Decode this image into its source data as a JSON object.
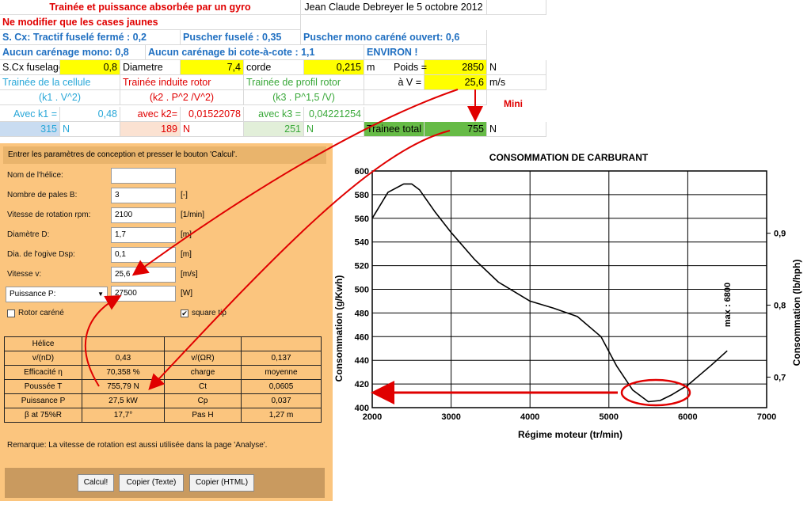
{
  "sheet": {
    "title": "Trainée et puissance absorbée par un gyro",
    "author_date": "Jean Claude Debreyer le 5 octobre 2012",
    "warning": "Ne modifier que les cases jaunes",
    "scx_label": "S. Cx:  Tractif fuselé fermé : 0,2",
    "puscher_fusele": "Puscher fuselé : 0,35",
    "puscher_mono": "Puscher mono caréné ouvert: 0,6",
    "aucun_mono": "Aucun carénage mono:  0,8",
    "aucun_bi": "Aucun carénage bi cote-à-cote : 1,1",
    "environ": "ENVIRON !",
    "scx_fuselage_label": "S.Cx fuselage",
    "scx_fuselage_value": "0,8",
    "diametre_label": "Diametre",
    "diametre_value": "7,4",
    "corde_label": "corde",
    "corde_value": "0,215",
    "corde_unit": "m",
    "poids_label": "Poids =",
    "poids_value": "2850",
    "poids_unit": "N",
    "trainee_cellule": "Trainée de la cellule",
    "trainee_induite": "Trainée induite rotor",
    "trainee_profil": "Trainée de profil rotor",
    "v_label": "à  V =",
    "v_value": "25,6",
    "v_unit": "m/s",
    "formula1": "(k1 . V^2)",
    "formula2": "(k2 . P^2 /V^2)",
    "formula3": "(k3 . P^1,5 /V)",
    "mini": "Mini",
    "k1_label": "Avec k1 =",
    "k1_value": "0,48",
    "k2_label": "avec k2=",
    "k2_value": "0,01522078",
    "k3_label": "avec k3 =",
    "k3_value": "0,04221254",
    "r1_value": "315",
    "r2_value": "189",
    "r3_value": "251",
    "n_unit": "N",
    "trainee_total_label": "Trainee total",
    "trainee_total_value": "755"
  },
  "dialog": {
    "header": "Entrer les paramètres de conception et presser le bouton 'Calcul'.",
    "nom_label": "Nom de l'hélice:",
    "nom_value": "",
    "pales_label": "Nombre de pales  B:",
    "pales_value": "3",
    "pales_unit": "[-]",
    "rpm_label": "Vitesse de rotation  rpm:",
    "rpm_value": "2100",
    "rpm_unit": "[1/min]",
    "diam_label": "Diamètre  D:",
    "diam_value": "1,7",
    "diam_unit": "[m]",
    "ogive_label": "Dia. de l'ogive  Dsp:",
    "ogive_value": "0,1",
    "ogive_unit": "[m]",
    "vitesse_label": "Vitesse  v:",
    "vitesse_value": "25,6",
    "vitesse_unit": "[m/s]",
    "puissance_select": "Puissance  P:",
    "puissance_value": "27500",
    "puissance_unit": "[W]",
    "rotor_carene": "Rotor caréné",
    "square_tip": "square tip",
    "table_title": "Hélice",
    "rows": [
      {
        "a": "v/(nD)",
        "b": "0,43",
        "c": "v/(ΩR)",
        "d": "0,137"
      },
      {
        "a": "Efficacité η",
        "b": "70,358 %",
        "c": "charge",
        "d": "moyenne"
      },
      {
        "a": "Poussée  T",
        "b": "755,79 N",
        "c": "Ct",
        "d": "0,0605"
      },
      {
        "a": "Puissance  P",
        "b": "27,5 kW",
        "c": "Cp",
        "d": "0,037"
      },
      {
        "a": "β at 75%R",
        "b": "17,7°",
        "c": "Pas H",
        "d": "1,27 m"
      }
    ],
    "remark": "Remarque: La vitesse de rotation est aussi utilisée dans la page 'Analyse'.",
    "btn_calcul": "Calcul!",
    "btn_copier_texte": "Copier (Texte)",
    "btn_copier_html": "Copier (HTML)"
  },
  "chart_data": {
    "type": "line",
    "title": "CONSOMMATION DE CARBURANT",
    "xlabel": "Régime moteur (tr/min)",
    "ylabel": "Consommation (g/Kwh)",
    "y2label": "Consommation (lb/hph)",
    "annotation": "max : 6800",
    "xlim": [
      2000,
      7000
    ],
    "ylim": [
      400,
      600
    ],
    "x_ticks": [
      "2000",
      "3000",
      "4000",
      "5000",
      "6000",
      "7000"
    ],
    "y_ticks": [
      "400",
      "420",
      "440",
      "460",
      "480",
      "500",
      "520",
      "540",
      "560",
      "580",
      "600"
    ],
    "y2_ticks": [
      "0,7",
      "0,8",
      "0,9"
    ],
    "grid": true,
    "series": [
      {
        "x": [
          2000,
          2200,
          2400,
          2500,
          2600,
          2800,
          3000,
          3300,
          3600,
          4000,
          4300,
          4600,
          4900,
          5100,
          5300,
          5500,
          5650,
          5800,
          6000,
          6300,
          6500
        ],
        "y": [
          560,
          582,
          589,
          589,
          584,
          565,
          548,
          525,
          506,
          490,
          484,
          477,
          460,
          435,
          415,
          405,
          406,
          411,
          419,
          436,
          448
        ]
      }
    ]
  }
}
